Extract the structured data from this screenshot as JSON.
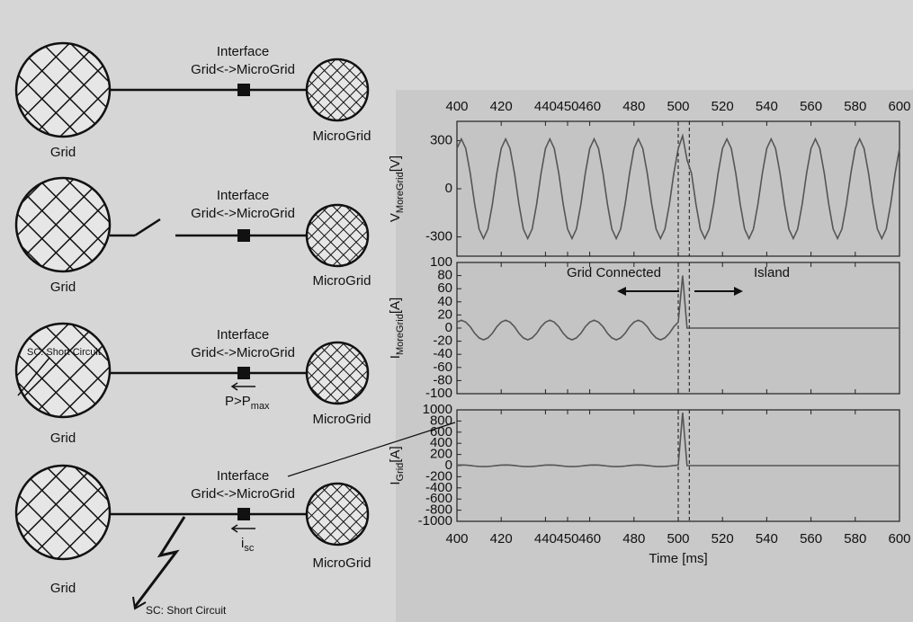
{
  "diagram": {
    "panels": [
      {
        "interface": "Interface",
        "link": "Grid<->MicroGrid",
        "grid": "Grid",
        "microgrid": "MicroGrid"
      },
      {
        "interface": "Interface",
        "link": "Grid<->MicroGrid",
        "grid": "Grid",
        "microgrid": "MicroGrid"
      },
      {
        "interface": "Interface",
        "link": "Grid<->MicroGrid",
        "grid": "Grid",
        "microgrid": "MicroGrid",
        "fault": "SC: Short Circuit",
        "flow": "P>P",
        "flow_sub": "max"
      },
      {
        "interface": "Interface",
        "link": "Grid<->MicroGrid",
        "grid": "Grid",
        "microgrid": "MicroGrid",
        "current": "i",
        "current_sub": "sc",
        "fault": "SC: Short Circuit"
      }
    ]
  },
  "chart_data": [
    {
      "type": "line",
      "ylabel": "V",
      "ylabel_sub": "MoreGrid",
      "ylabel_unit": "[V]",
      "color": "#555555",
      "x": [
        400,
        402,
        404,
        406,
        408,
        410,
        412,
        414,
        416,
        418,
        420,
        422,
        424,
        426,
        428,
        430,
        432,
        434,
        436,
        438,
        440,
        442,
        444,
        446,
        448,
        450,
        452,
        454,
        456,
        458,
        460,
        462,
        464,
        466,
        468,
        470,
        472,
        474,
        476,
        478,
        480,
        482,
        484,
        486,
        488,
        490,
        492,
        494,
        496,
        498,
        500,
        502,
        504,
        506,
        508,
        510,
        512,
        514,
        516,
        518,
        520,
        522,
        524,
        526,
        528,
        530,
        532,
        534,
        536,
        538,
        540,
        542,
        544,
        546,
        548,
        550,
        552,
        554,
        556,
        558,
        560,
        562,
        564,
        566,
        568,
        570,
        572,
        574,
        576,
        578,
        580,
        582,
        584,
        586,
        588,
        590,
        592,
        594,
        596,
        598,
        600
      ],
      "values": [
        251,
        310,
        251,
        96,
        -96,
        -251,
        -310,
        -251,
        -96,
        96,
        251,
        310,
        251,
        96,
        -96,
        -251,
        -310,
        -251,
        -96,
        96,
        251,
        310,
        251,
        96,
        -96,
        -251,
        -310,
        -251,
        -96,
        96,
        251,
        310,
        251,
        96,
        -96,
        -251,
        -310,
        -251,
        -96,
        96,
        251,
        310,
        251,
        96,
        -96,
        -251,
        -310,
        -251,
        -96,
        96,
        251,
        330,
        180,
        96,
        -96,
        -251,
        -310,
        -251,
        -96,
        96,
        251,
        310,
        251,
        96,
        -96,
        -251,
        -310,
        -251,
        -96,
        96,
        251,
        310,
        251,
        96,
        -96,
        -251,
        -310,
        -251,
        -96,
        96,
        251,
        310,
        251,
        96,
        -96,
        -251,
        -310,
        -251,
        -96,
        96,
        251,
        310,
        251,
        96,
        -96,
        -251,
        -310,
        -251,
        -96,
        96,
        251
      ],
      "xlim": [
        400,
        600
      ],
      "xticks": [
        400,
        420,
        440,
        450,
        460,
        480,
        500,
        520,
        540,
        560,
        580,
        600
      ],
      "ylim": [
        -420,
        420
      ],
      "yticks": [
        -300,
        0,
        300
      ],
      "vlines": [
        500,
        505
      ]
    },
    {
      "type": "line",
      "ylabel": "I",
      "ylabel_sub": "MoreGrid",
      "ylabel_unit": "[A]",
      "color": "#555555",
      "x": [
        400,
        402,
        404,
        406,
        408,
        410,
        412,
        414,
        416,
        418,
        420,
        422,
        424,
        426,
        428,
        430,
        432,
        434,
        436,
        438,
        440,
        442,
        444,
        446,
        448,
        450,
        452,
        454,
        456,
        458,
        460,
        462,
        464,
        466,
        468,
        470,
        472,
        474,
        476,
        478,
        480,
        482,
        484,
        486,
        488,
        490,
        492,
        494,
        496,
        498,
        500,
        502,
        504,
        506,
        508,
        510,
        512,
        514,
        516,
        518,
        520,
        522,
        524,
        526,
        528,
        530,
        532,
        534,
        536,
        538,
        540,
        542,
        544,
        546,
        548,
        550,
        552,
        554,
        556,
        558,
        560,
        562,
        564,
        566,
        568,
        570,
        572,
        574,
        576,
        578,
        580,
        582,
        584,
        586,
        588,
        590,
        592,
        594,
        596,
        598,
        600
      ],
      "values": [
        9,
        12,
        9,
        2,
        -8,
        -15,
        -18,
        -15,
        -8,
        2,
        9,
        12,
        9,
        2,
        -8,
        -15,
        -18,
        -15,
        -8,
        2,
        9,
        12,
        9,
        2,
        -8,
        -15,
        -18,
        -15,
        -8,
        2,
        9,
        12,
        9,
        2,
        -8,
        -15,
        -18,
        -15,
        -8,
        2,
        9,
        12,
        9,
        2,
        -8,
        -15,
        -18,
        -15,
        -8,
        2,
        9,
        80,
        0,
        0,
        0,
        0,
        0,
        0,
        0,
        0,
        0,
        0,
        0,
        0,
        0,
        0,
        0,
        0,
        0,
        0,
        0,
        0,
        0,
        0,
        0,
        0,
        0,
        0,
        0,
        0,
        0,
        0,
        0,
        0,
        0,
        0,
        0,
        0,
        0,
        0,
        0,
        0,
        0,
        0,
        0,
        0,
        0,
        0,
        0,
        0,
        0
      ],
      "xlim": [
        400,
        600
      ],
      "ylim": [
        -100,
        100
      ],
      "yticks": [
        -100,
        -80,
        -60,
        -40,
        -20,
        0,
        20,
        40,
        60,
        80,
        100
      ],
      "vlines": [
        500,
        505
      ],
      "annotations": [
        "Grid Connected",
        "Island"
      ]
    },
    {
      "type": "line",
      "ylabel": "I",
      "ylabel_sub": "Grid",
      "ylabel_unit": "[A]",
      "color": "#555555",
      "xlabel": "Time [ms]",
      "x": [
        400,
        402,
        404,
        406,
        408,
        410,
        412,
        414,
        416,
        418,
        420,
        422,
        424,
        426,
        428,
        430,
        432,
        434,
        436,
        438,
        440,
        442,
        444,
        446,
        448,
        450,
        452,
        454,
        456,
        458,
        460,
        462,
        464,
        466,
        468,
        470,
        472,
        474,
        476,
        478,
        480,
        482,
        484,
        486,
        488,
        490,
        492,
        494,
        496,
        498,
        500,
        502,
        504,
        506,
        508,
        510,
        512,
        514,
        516,
        518,
        520,
        522,
        524,
        526,
        528,
        530,
        532,
        534,
        536,
        538,
        540,
        542,
        544,
        546,
        548,
        550,
        552,
        554,
        556,
        558,
        560,
        562,
        564,
        566,
        568,
        570,
        572,
        574,
        576,
        578,
        580,
        582,
        584,
        586,
        588,
        590,
        592,
        594,
        596,
        598,
        600
      ],
      "values": [
        9,
        12,
        9,
        2,
        -8,
        -15,
        -18,
        -15,
        -8,
        2,
        9,
        12,
        9,
        2,
        -8,
        -15,
        -18,
        -15,
        -8,
        2,
        9,
        12,
        9,
        2,
        -8,
        -15,
        -18,
        -15,
        -8,
        2,
        9,
        12,
        9,
        2,
        -8,
        -15,
        -18,
        -15,
        -8,
        2,
        9,
        12,
        9,
        2,
        -8,
        -15,
        -18,
        -15,
        -8,
        2,
        9,
        950,
        0,
        0,
        0,
        0,
        0,
        0,
        0,
        0,
        0,
        0,
        0,
        0,
        0,
        0,
        0,
        0,
        0,
        0,
        0,
        0,
        0,
        0,
        0,
        0,
        0,
        0,
        0,
        0,
        0,
        0,
        0,
        0,
        0,
        0,
        0,
        0,
        0,
        0,
        0,
        0,
        0,
        0,
        0,
        0,
        0,
        0,
        0,
        0,
        0
      ],
      "xlim": [
        400,
        600
      ],
      "xticks": [
        400,
        420,
        440,
        450,
        460,
        480,
        500,
        520,
        540,
        560,
        580,
        600
      ],
      "ylim": [
        -1000,
        1000
      ],
      "yticks": [
        -1000,
        -800,
        -600,
        -400,
        -200,
        0,
        200,
        400,
        600,
        800,
        1000
      ],
      "vlines": [
        500,
        505
      ]
    }
  ]
}
